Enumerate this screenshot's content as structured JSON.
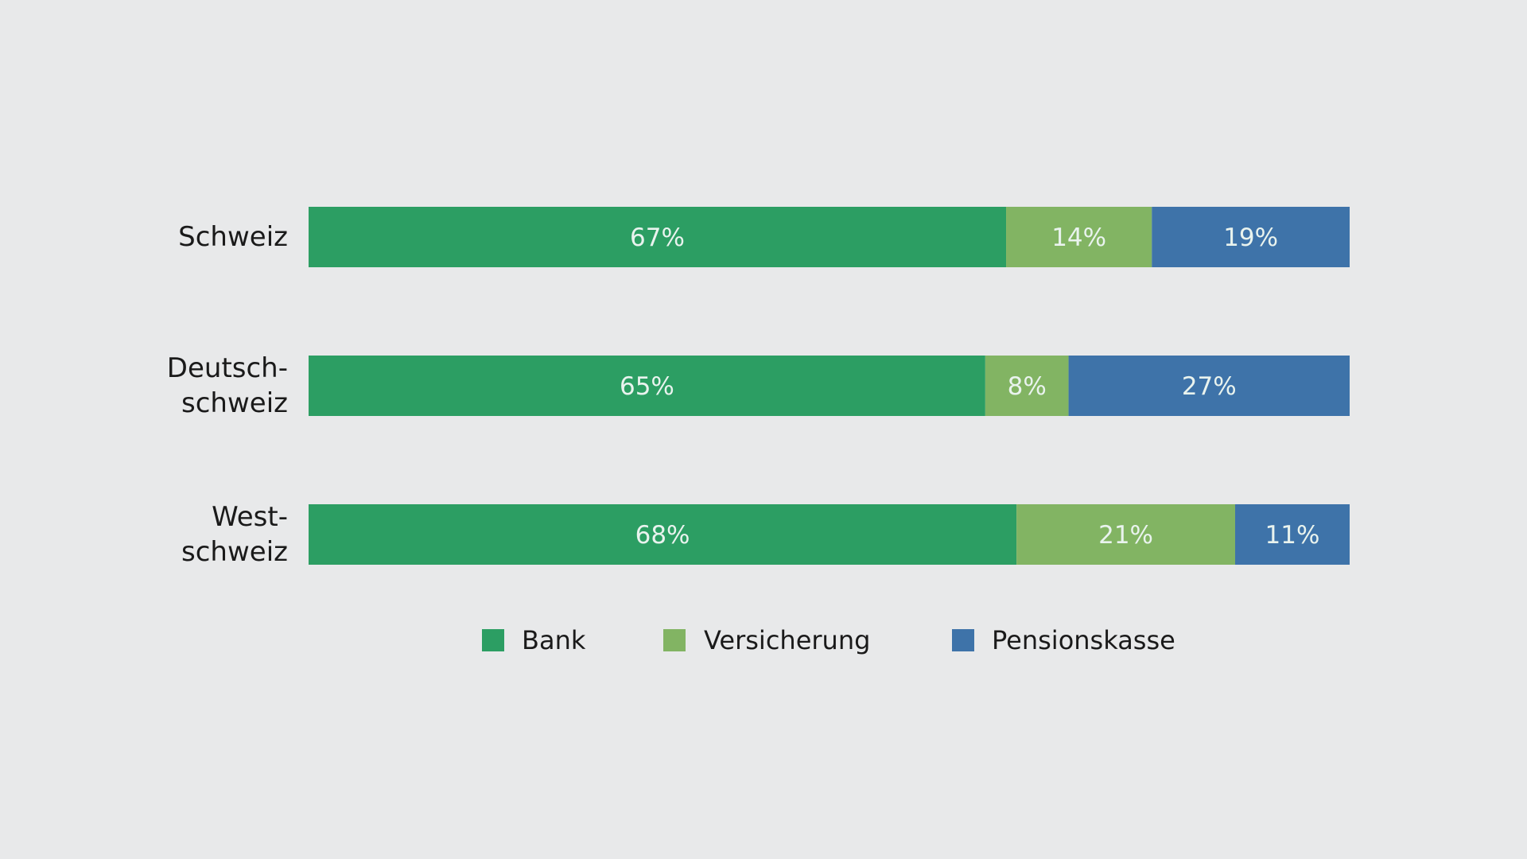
{
  "chart_data": {
    "type": "bar",
    "orientation": "horizontal",
    "stacked": true,
    "categories": [
      "Schweiz",
      "Deutsch-\nschweiz",
      "West-\nschweiz"
    ],
    "series": [
      {
        "name": "Bank",
        "color": "#2c9e63",
        "values": [
          67,
          65,
          68
        ],
        "labels": [
          "67%",
          "65%",
          "68%"
        ]
      },
      {
        "name": "Versicherung",
        "color": "#82b463",
        "values": [
          14,
          8,
          21
        ],
        "labels": [
          "14%",
          "8%",
          "21%"
        ]
      },
      {
        "name": "Pensionskasse",
        "color": "#3e73a9",
        "values": [
          19,
          27,
          11
        ],
        "labels": [
          "19%",
          "27%",
          "11%"
        ]
      }
    ],
    "xlim": [
      0,
      100
    ],
    "grid": false,
    "legend_position": "bottom"
  }
}
